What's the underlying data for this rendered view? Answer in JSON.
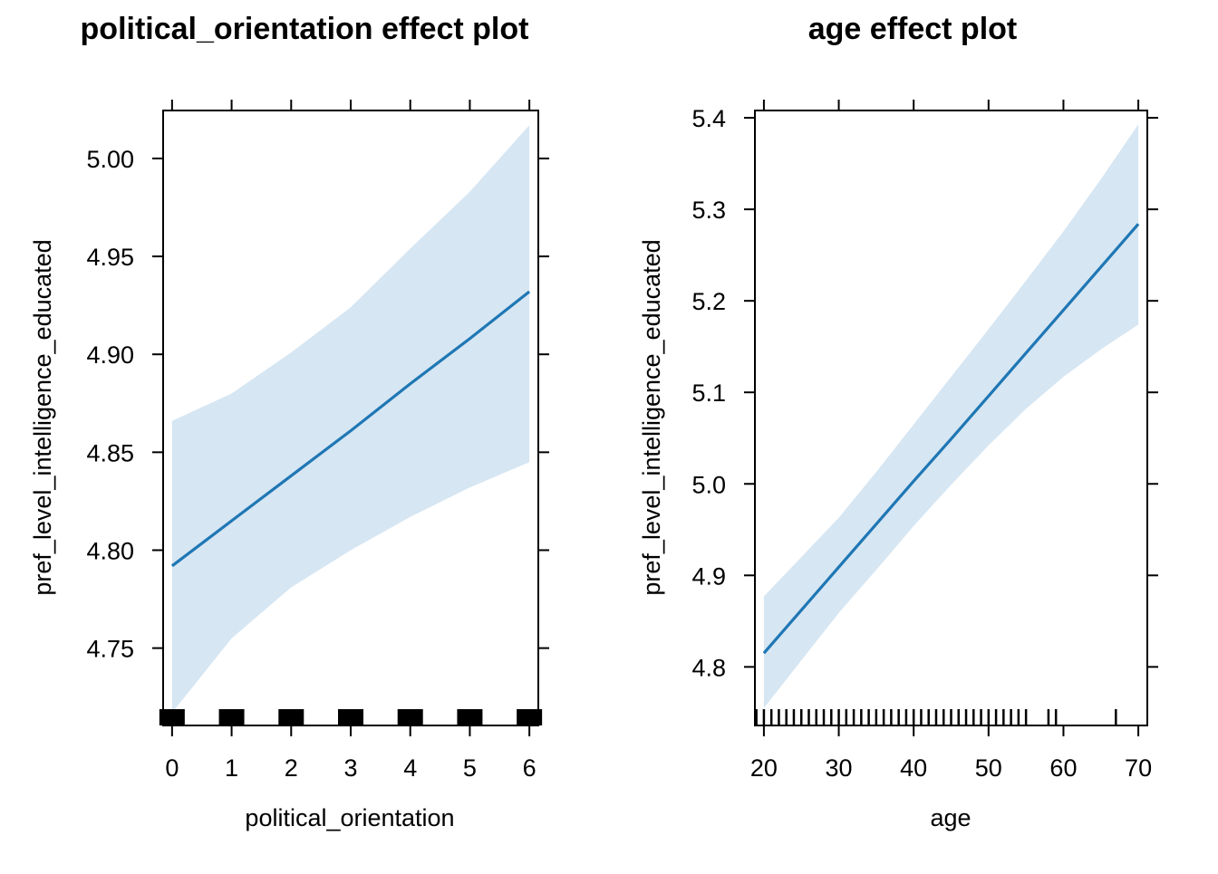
{
  "chart_data": [
    {
      "type": "line",
      "title": "political_orientation effect plot",
      "xlabel": "political_orientation",
      "ylabel": "pref_level_intelligence_educated",
      "xlim": [
        -0.15,
        6.15
      ],
      "ylim": [
        4.7105,
        5.0245
      ],
      "x_ticks": [
        0,
        1,
        2,
        3,
        4,
        5,
        6
      ],
      "x_tick_labels": [
        "0",
        "1",
        "2",
        "3",
        "4",
        "5",
        "6"
      ],
      "y_ticks": [
        4.75,
        4.8,
        4.85,
        4.9,
        4.95,
        5.0
      ],
      "y_tick_labels": [
        "4.75",
        "4.80",
        "4.85",
        "4.90",
        "4.95",
        "5.00"
      ],
      "grid": false,
      "series": [
        {
          "x": [
            0,
            1,
            2,
            3,
            4,
            5,
            6
          ],
          "fit": [
            4.792,
            4.815,
            4.838,
            4.861,
            4.885,
            4.908,
            4.932
          ],
          "lower": [
            4.717,
            4.755,
            4.781,
            4.8,
            4.817,
            4.832,
            4.845
          ],
          "upper": [
            4.866,
            4.88,
            4.901,
            4.924,
            4.954,
            4.983,
            5.017
          ],
          "color": "#1f77b4",
          "band_color": "#d6e6f3"
        }
      ],
      "rug": [
        0,
        1,
        2,
        3,
        4,
        5,
        6
      ],
      "rug_style": "block"
    },
    {
      "type": "line",
      "title": "age effect plot",
      "xlabel": "age",
      "ylabel": "pref_level_intelligence_educated",
      "xlim": [
        18.8,
        71.2
      ],
      "ylim": [
        4.736,
        5.408
      ],
      "x_ticks": [
        20,
        30,
        40,
        50,
        60,
        70
      ],
      "x_tick_labels": [
        "20",
        "30",
        "40",
        "50",
        "60",
        "70"
      ],
      "y_ticks": [
        4.8,
        4.9,
        5.0,
        5.1,
        5.2,
        5.3,
        5.4
      ],
      "y_tick_labels": [
        "4.8",
        "4.9",
        "5.0",
        "5.1",
        "5.2",
        "5.3",
        "5.4"
      ],
      "grid": false,
      "series": [
        {
          "x": [
            20,
            25,
            30,
            35,
            40,
            45,
            50,
            55,
            60,
            65,
            70
          ],
          "fit": [
            4.815,
            4.862,
            4.909,
            4.956,
            5.003,
            5.049,
            5.096,
            5.143,
            5.19,
            5.237,
            5.284
          ],
          "lower": [
            4.755,
            4.807,
            4.859,
            4.906,
            4.954,
            4.999,
            5.042,
            5.082,
            5.117,
            5.147,
            5.174
          ],
          "upper": [
            4.877,
            4.92,
            4.963,
            5.013,
            5.065,
            5.117,
            5.169,
            5.222,
            5.276,
            5.333,
            5.393
          ],
          "color": "#1f77b4",
          "band_color": "#d6e6f3"
        }
      ],
      "rug": [
        19,
        20,
        21,
        22,
        23,
        24,
        25,
        26,
        27,
        28,
        29,
        30,
        31,
        32,
        33,
        34,
        35,
        36,
        37,
        38,
        39,
        40,
        41,
        42,
        43,
        44,
        45,
        46,
        47,
        48,
        49,
        50,
        51,
        52,
        53,
        54,
        55,
        58,
        59,
        67
      ],
      "rug_style": "line"
    }
  ]
}
